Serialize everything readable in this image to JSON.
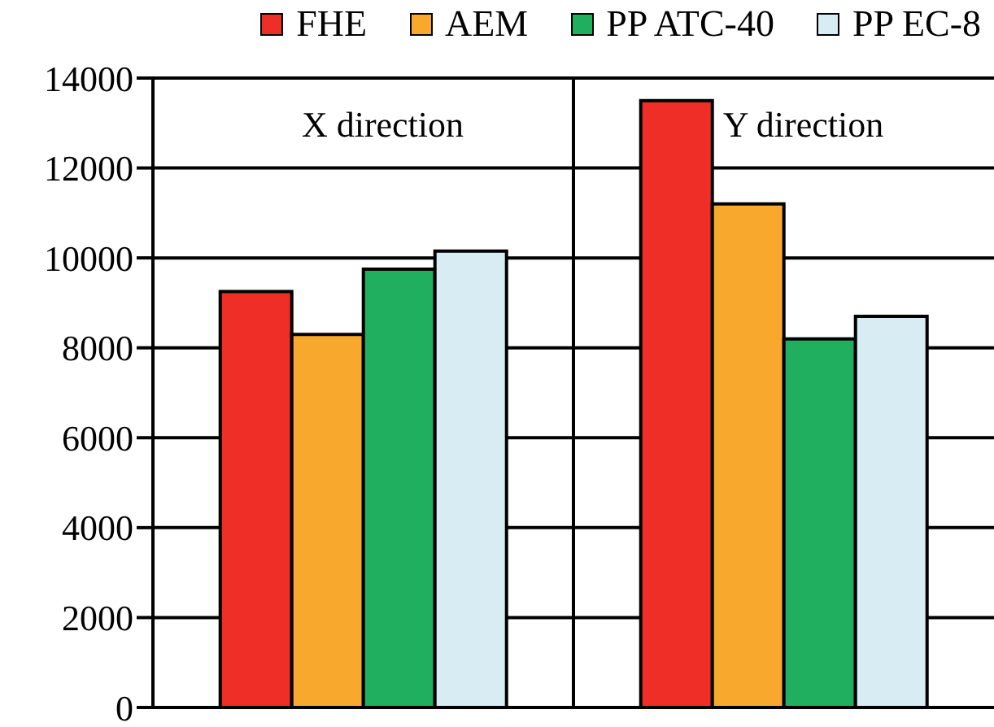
{
  "chart_data": {
    "type": "bar",
    "categories": [
      "X direction",
      "Y direction"
    ],
    "series": [
      {
        "name": "FHE",
        "color": "#ee2e27",
        "values": [
          9250,
          13500
        ]
      },
      {
        "name": "AEM",
        "color": "#f9a82e",
        "values": [
          8300,
          11200
        ]
      },
      {
        "name": "PP ATC-40",
        "color": "#1faf5e",
        "values": [
          9750,
          8200
        ]
      },
      {
        "name": "PP EC-8",
        "color": "#d7edf3",
        "values": [
          10150,
          8700
        ]
      }
    ],
    "ylim": [
      0,
      14000
    ],
    "yticks": [
      0,
      2000,
      4000,
      6000,
      8000,
      10000,
      12000,
      14000
    ],
    "grid": true,
    "legend": "top"
  }
}
